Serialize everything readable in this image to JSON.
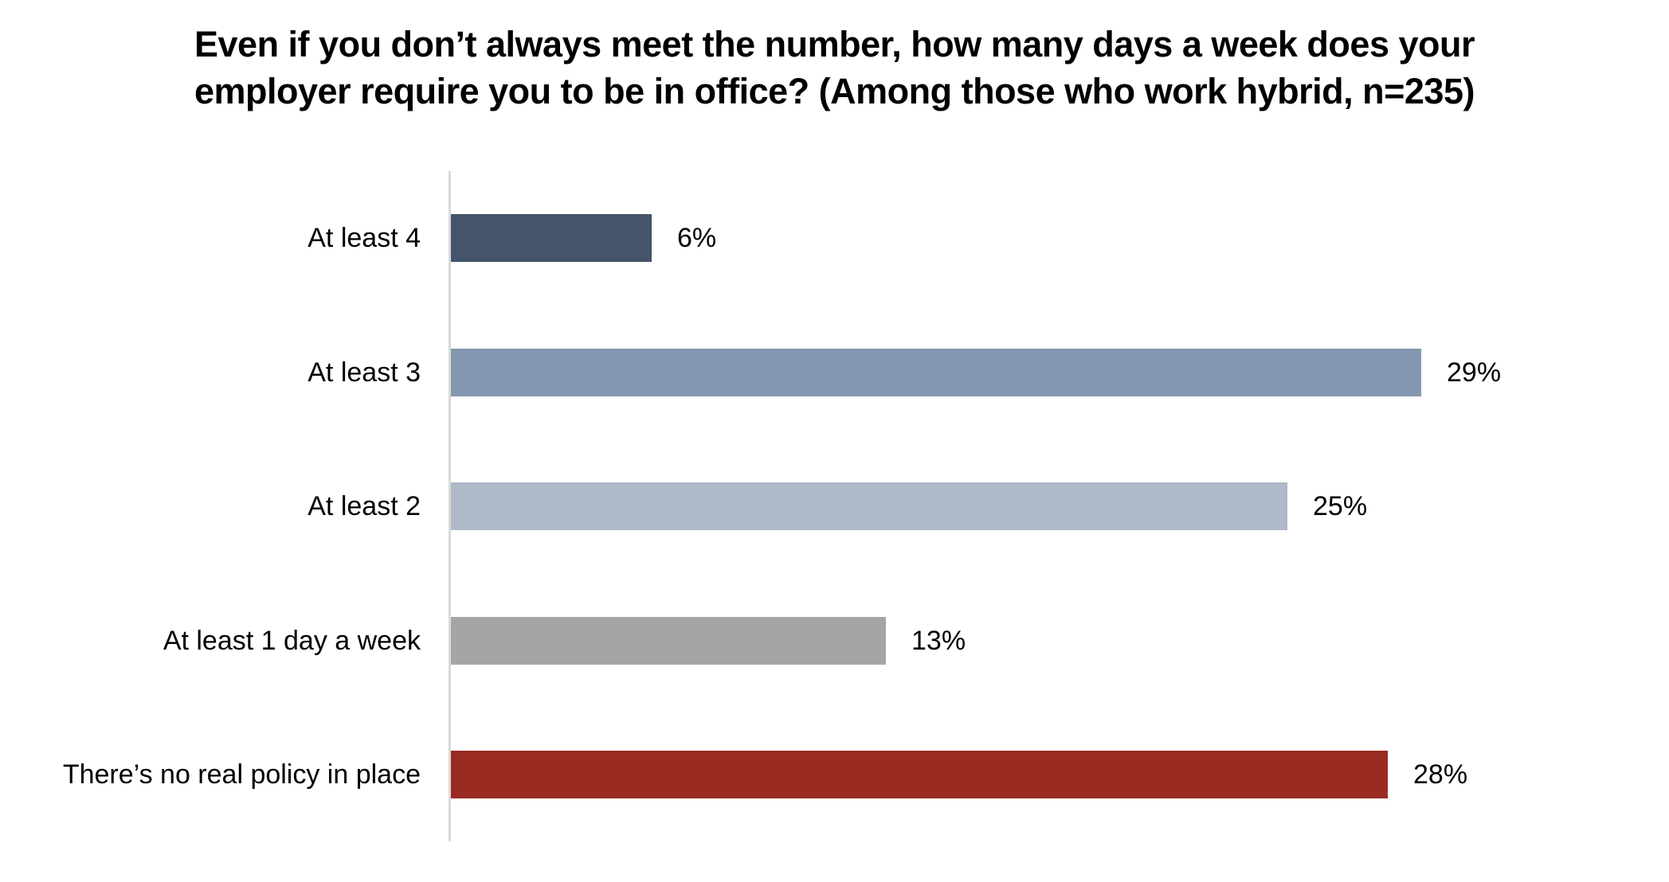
{
  "chart_data": {
    "type": "bar",
    "orientation": "horizontal",
    "title": "Even if you don’t always meet the number, how many days a week does your employer require you to be in office? (Among those who work hybrid, n=235)",
    "title_lines": [
      "Even if you don’t always meet the number, how many days a week does your",
      "employer require you to be in office? (Among those who work hybrid, n=235)"
    ],
    "categories": [
      "At least 4",
      "At least 3",
      "At least 2",
      "At least 1 day a week",
      "There’s no real policy in place"
    ],
    "values": [
      6,
      29,
      25,
      13,
      28
    ],
    "value_labels": [
      "6%",
      "29%",
      "25%",
      "13%",
      "28%"
    ],
    "bar_colors": [
      "#44546A",
      "#8497B0",
      "#AEB9C9",
      "#A5A5A5",
      "#9A2B23"
    ],
    "xlim": [
      0,
      30
    ],
    "axis_line_color": "#D9D9D9",
    "text_color": "#000000",
    "grid": false,
    "legend": false
  }
}
